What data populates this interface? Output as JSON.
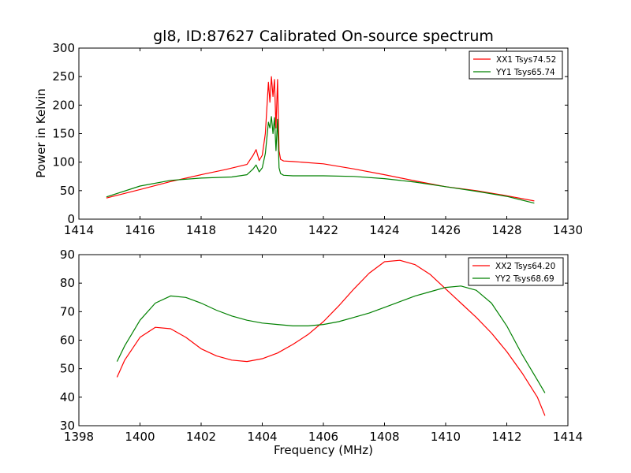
{
  "figure": {
    "title": "gl8, ID:87627 Calibrated On-source spectrum",
    "xlabel": "Frequency (MHz)",
    "ylabel": "Power in Kelvin"
  },
  "chart_data": [
    {
      "type": "line",
      "title": "gl8, ID:87627 Calibrated On-source spectrum",
      "xlabel": "",
      "ylabel": "Power in Kelvin",
      "xlim": [
        1414,
        1430
      ],
      "ylim": [
        0,
        300
      ],
      "xticks": [
        1414,
        1416,
        1418,
        1420,
        1422,
        1424,
        1426,
        1428,
        1430
      ],
      "yticks": [
        0,
        50,
        100,
        150,
        200,
        250,
        300
      ],
      "grid": false,
      "legend_position": "top-right",
      "series": [
        {
          "name": "XX1 Tsys74.52",
          "color": "#ff0000",
          "x": [
            1414.9,
            1416.0,
            1417.0,
            1418.0,
            1418.8,
            1419.5,
            1419.7,
            1419.8,
            1419.9,
            1420.0,
            1420.1,
            1420.2,
            1420.25,
            1420.3,
            1420.35,
            1420.4,
            1420.45,
            1420.5,
            1420.55,
            1420.6,
            1420.7,
            1421.0,
            1422.0,
            1423.0,
            1424.0,
            1425.0,
            1426.0,
            1427.0,
            1428.0,
            1428.9
          ],
          "y": [
            37,
            52,
            66,
            78,
            87,
            96,
            112,
            122,
            103,
            112,
            150,
            240,
            205,
            250,
            215,
            245,
            160,
            245,
            120,
            105,
            102,
            101,
            97,
            88,
            78,
            67,
            57,
            50,
            41,
            32
          ]
        },
        {
          "name": "YY1 Tsys65.74",
          "color": "#008000",
          "x": [
            1414.9,
            1416.0,
            1417.0,
            1418.0,
            1419.0,
            1419.5,
            1419.7,
            1419.8,
            1419.9,
            1420.0,
            1420.1,
            1420.2,
            1420.25,
            1420.3,
            1420.35,
            1420.4,
            1420.45,
            1420.5,
            1420.55,
            1420.6,
            1420.7,
            1421.0,
            1422.0,
            1423.0,
            1424.0,
            1425.0,
            1426.0,
            1427.0,
            1428.0,
            1428.9
          ],
          "y": [
            39,
            58,
            68,
            72,
            74,
            78,
            88,
            95,
            83,
            90,
            115,
            170,
            160,
            180,
            150,
            178,
            120,
            175,
            90,
            80,
            77,
            76,
            76,
            75,
            71,
            65,
            57,
            49,
            40,
            28
          ]
        }
      ]
    },
    {
      "type": "line",
      "title": "",
      "xlabel": "Frequency (MHz)",
      "ylabel": "",
      "xlim": [
        1398,
        1414
      ],
      "ylim": [
        30,
        90
      ],
      "xticks": [
        1398,
        1400,
        1402,
        1404,
        1406,
        1408,
        1410,
        1412,
        1414
      ],
      "yticks": [
        30,
        40,
        50,
        60,
        70,
        80,
        90
      ],
      "grid": false,
      "legend_position": "top-right",
      "series": [
        {
          "name": "XX2 Tsys64.20",
          "color": "#ff0000",
          "x": [
            1399.25,
            1399.5,
            1400.0,
            1400.5,
            1401.0,
            1401.5,
            1402.0,
            1402.5,
            1403.0,
            1403.5,
            1404.0,
            1404.5,
            1405.0,
            1405.5,
            1406.0,
            1406.5,
            1407.0,
            1407.5,
            1408.0,
            1408.5,
            1409.0,
            1409.5,
            1410.0,
            1410.5,
            1411.0,
            1411.5,
            1412.0,
            1412.5,
            1413.0,
            1413.25
          ],
          "y": [
            47,
            53,
            61,
            64.5,
            64,
            61,
            57,
            54.5,
            53,
            52.5,
            53.5,
            55.5,
            58.5,
            62,
            66.5,
            72,
            78,
            83.5,
            87.5,
            88,
            86.5,
            83,
            78,
            73,
            68,
            62.5,
            56,
            48.5,
            40,
            33.5
          ]
        },
        {
          "name": "YY2 Tsys68.69",
          "color": "#008000",
          "x": [
            1399.25,
            1399.5,
            1400.0,
            1400.5,
            1401.0,
            1401.5,
            1402.0,
            1402.5,
            1403.0,
            1403.5,
            1404.0,
            1404.5,
            1405.0,
            1405.5,
            1406.0,
            1406.5,
            1407.0,
            1407.5,
            1408.0,
            1408.5,
            1409.0,
            1409.5,
            1410.0,
            1410.5,
            1411.0,
            1411.5,
            1412.0,
            1412.5,
            1413.0,
            1413.25
          ],
          "y": [
            52.5,
            58,
            67,
            73,
            75.5,
            75,
            73,
            70.5,
            68.5,
            67,
            66,
            65.5,
            65,
            65,
            65.5,
            66.5,
            68,
            69.5,
            71.5,
            73.5,
            75.5,
            77,
            78.5,
            79,
            77.5,
            73,
            65,
            55,
            46,
            41.5
          ]
        }
      ]
    }
  ]
}
